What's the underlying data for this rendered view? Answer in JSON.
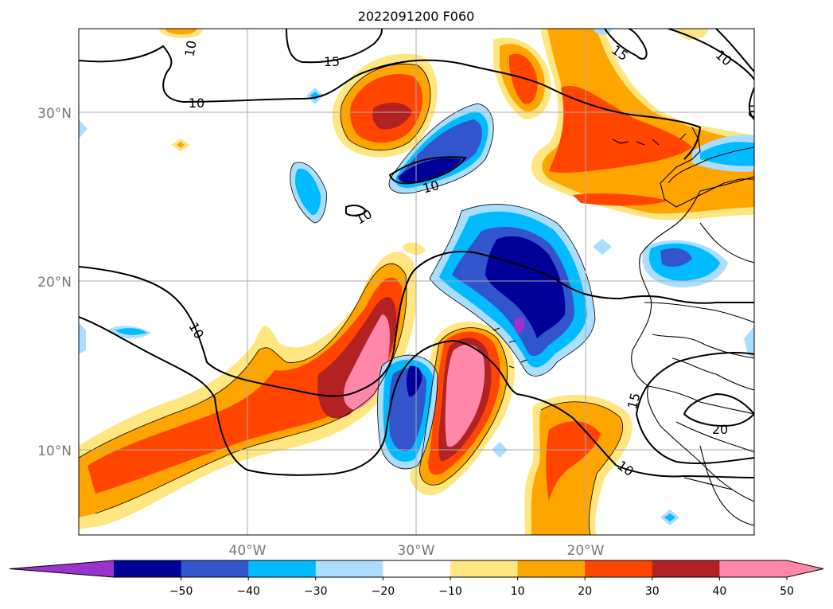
{
  "title": "2022091200 F060",
  "map": {
    "lat_labels": [
      "30°N",
      "20°N",
      "10°N"
    ],
    "lon_labels": [
      "40°W",
      "30°W",
      "20°W"
    ],
    "grid": true,
    "contour_labels": [
      "10",
      "15",
      "10",
      "10",
      "10",
      "10",
      "15",
      "10",
      "10",
      "15",
      "20",
      "10"
    ]
  },
  "colorbar": {
    "ticks": [
      "−50",
      "−40",
      "−30",
      "−20",
      "−10",
      "10",
      "20",
      "30",
      "40",
      "50"
    ],
    "colors": [
      "#9933cc",
      "#000099",
      "#3355cc",
      "#00bbff",
      "#aaddff",
      "#ffffff",
      "#ffe680",
      "#ffa500",
      "#ff4500",
      "#b22222",
      "#ff88aa",
      "#ff88aa"
    ],
    "extend": "both"
  },
  "palette": {
    "n50": "#9933cc",
    "n40": "#000099",
    "n30": "#3355cc",
    "n20": "#00bbff",
    "n10": "#aaddff",
    "p10": "#ffe680",
    "p20": "#ffa500",
    "p30": "#ff4500",
    "p40": "#b22222",
    "p50": "#ff88aa"
  }
}
